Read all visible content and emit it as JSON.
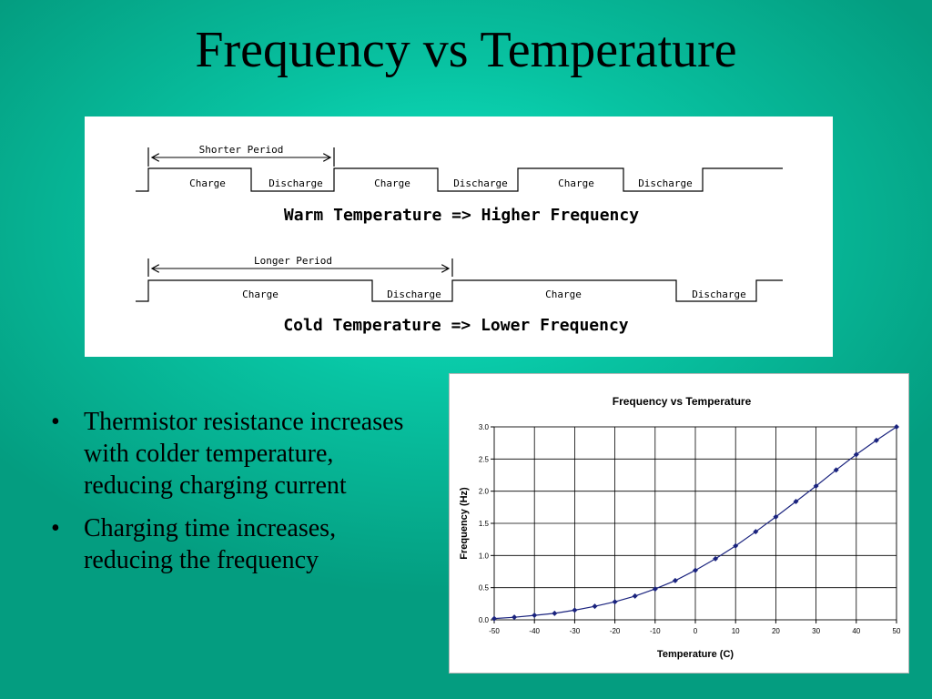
{
  "slide": {
    "title": "Frequency vs Temperature"
  },
  "timing": {
    "warm": {
      "period_label": "Shorter Period",
      "segments": [
        "Charge",
        "Discharge",
        "Charge",
        "Discharge",
        "Charge",
        "Discharge"
      ],
      "caption": "Warm Temperature => Higher Frequency"
    },
    "cold": {
      "period_label": "Longer Period",
      "segments": [
        "Charge",
        "Discharge",
        "Charge",
        "Discharge"
      ],
      "caption": "Cold Temperature => Lower Frequency"
    }
  },
  "bullets": [
    "Thermistor resistance increases with colder temperature, reducing charging current",
    "Charging time increases, reducing the frequency"
  ],
  "bullet_marker": "•",
  "chart_data": {
    "type": "line",
    "title": "Frequency vs Temperature",
    "xlabel": "Temperature (C)",
    "ylabel": "Frequency (Hz)",
    "xlim": [
      -50,
      50
    ],
    "ylim": [
      0,
      3
    ],
    "xticks": [
      -50,
      -40,
      -30,
      -20,
      -10,
      0,
      10,
      20,
      30,
      40,
      50
    ],
    "yticks": [
      "0.0",
      "0.5",
      "1.0",
      "1.5",
      "2.0",
      "2.5",
      "3.0"
    ],
    "grid": true,
    "legend": "none",
    "series": [
      {
        "x": [
          -50,
          -45,
          -40,
          -35,
          -30,
          -25,
          -20,
          -15,
          -10,
          -5,
          0,
          5,
          10,
          15,
          20,
          25,
          30,
          35,
          40,
          45,
          50
        ],
        "y": [
          0.02,
          0.04,
          0.07,
          0.1,
          0.15,
          0.21,
          0.28,
          0.37,
          0.48,
          0.61,
          0.77,
          0.95,
          1.15,
          1.37,
          1.6,
          1.84,
          2.08,
          2.33,
          2.57,
          2.79,
          3.0
        ],
        "color": "#1a237e"
      }
    ]
  }
}
